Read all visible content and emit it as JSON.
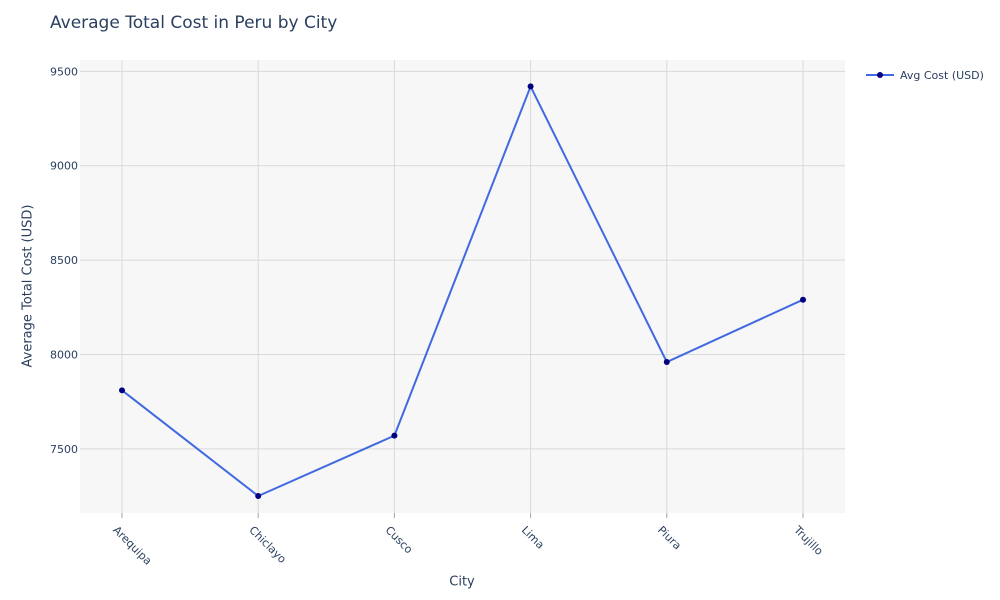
{
  "chart_data": {
    "type": "line",
    "title": "Average Total Cost in Peru by City",
    "xlabel": "City",
    "ylabel": "Average Total Cost (USD)",
    "categories": [
      "Arequipa",
      "Chiclayo",
      "Cusco",
      "Lima",
      "Piura",
      "Trujillo"
    ],
    "series": [
      {
        "name": "Avg Cost (USD)",
        "values": [
          7810,
          7250,
          7570,
          9420,
          7960,
          8290
        ],
        "line_color": "#4169e1",
        "marker_color": "#000080"
      }
    ],
    "ylim": [
      7160,
      9560
    ],
    "yticks": [
      7500,
      8000,
      8500,
      9000,
      9500
    ],
    "grid": true,
    "legend_position": "top-right",
    "plot_background": "#f7f7f7",
    "grid_color": "#d9d9d9"
  }
}
